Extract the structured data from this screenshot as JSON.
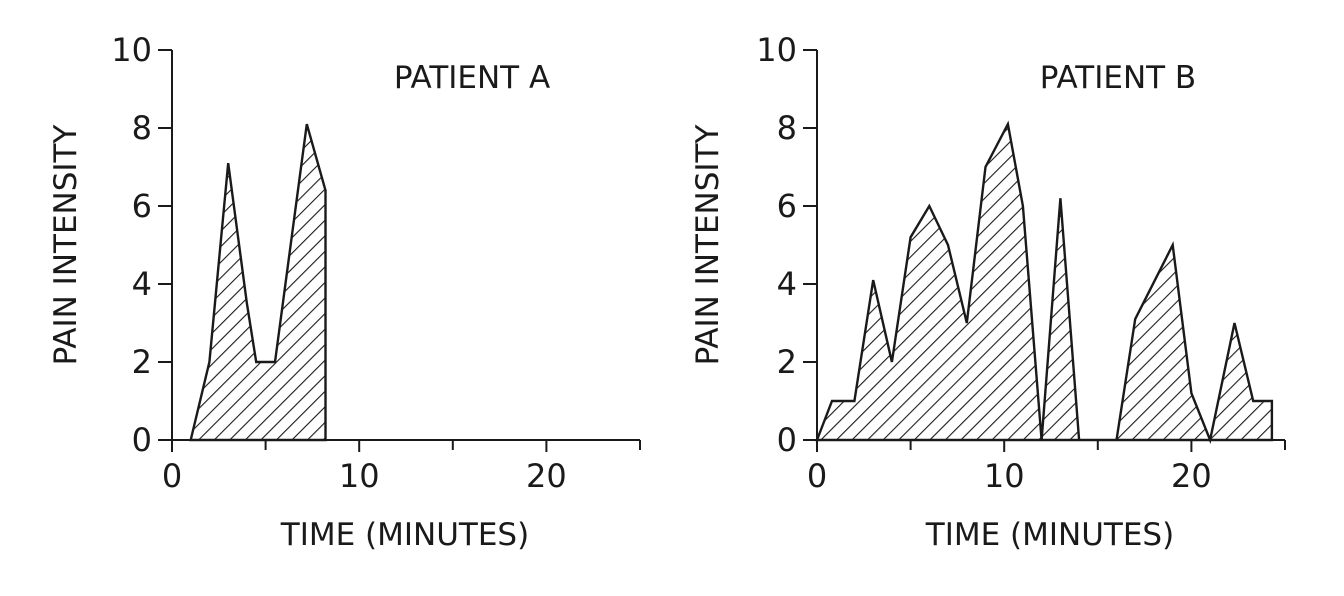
{
  "chart_data": [
    {
      "type": "area",
      "title": "PATIENT A",
      "xlabel": "TIME (MINUTES)",
      "ylabel": "PAIN INTENSITY",
      "xlim": [
        0,
        25
      ],
      "ylim": [
        0,
        10
      ],
      "xticks": [
        0,
        10,
        20
      ],
      "xticks_minor": [
        5,
        15,
        25
      ],
      "yticks": [
        0,
        2,
        4,
        6,
        8,
        10
      ],
      "fill": "hatched",
      "series": [
        {
          "x": [
            1,
            2,
            3,
            4,
            4.5,
            5.5,
            7.2,
            8.2,
            8.2
          ],
          "y": [
            0,
            2,
            7.1,
            3.5,
            2,
            2,
            8.1,
            6.4,
            0
          ]
        }
      ]
    },
    {
      "type": "area",
      "title": "PATIENT B",
      "xlabel": "TIME (MINUTES)",
      "ylabel": "PAIN INTENSITY",
      "xlim": [
        0,
        25
      ],
      "ylim": [
        0,
        10
      ],
      "xticks": [
        0,
        10,
        20
      ],
      "xticks_minor": [
        5,
        15,
        25
      ],
      "yticks": [
        0,
        2,
        4,
        6,
        8,
        10
      ],
      "fill": "hatched",
      "series": [
        {
          "x": [
            0,
            0.8,
            2.0,
            3.0,
            4.0,
            5.0,
            6.0,
            7.0,
            8.0,
            9.0,
            10.2,
            11.0,
            12.0,
            13.0,
            14.0,
            14.0,
            16.0,
            17.0,
            19.0,
            20.0,
            21.0,
            21.0,
            22.3,
            23.3,
            24.3,
            24.3
          ],
          "y": [
            0,
            1,
            1,
            4.1,
            2,
            5.2,
            6,
            5,
            3,
            7,
            8.1,
            6,
            0,
            6.2,
            0,
            0,
            0,
            3.1,
            5,
            1.2,
            0,
            0,
            3,
            1,
            1,
            0
          ]
        }
      ]
    }
  ]
}
